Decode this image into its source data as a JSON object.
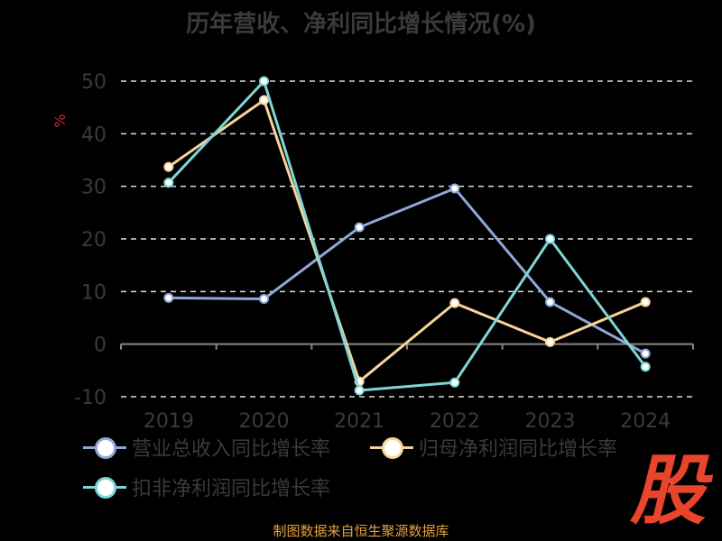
{
  "chart_data": {
    "type": "line",
    "title": "历年营收、净利同比增长情况(%)",
    "ylabel": "%",
    "categories": [
      "2019",
      "2020",
      "2021",
      "2022",
      "2023",
      "2024"
    ],
    "ylim": [
      -10,
      50
    ],
    "yticks": [
      50,
      40,
      30,
      20,
      10,
      0,
      -10
    ],
    "grid": true,
    "legend_position": "bottom",
    "series": [
      {
        "name": "营业总收入同比增长率",
        "color": "#8fa8d8",
        "values": [
          8.8,
          8.6,
          22.2,
          29.6,
          8.0,
          -1.8
        ]
      },
      {
        "name": "归母净利润同比增长率",
        "color": "#f6d49a",
        "values": [
          33.7,
          46.4,
          -7.1,
          7.8,
          0.4,
          8.0
        ]
      },
      {
        "name": "扣非净利润同比增长率",
        "color": "#7fd6d6",
        "values": [
          30.7,
          50.0,
          -8.8,
          -7.3,
          20.0,
          -4.3
        ]
      }
    ]
  },
  "source": "制图数据来自恒生聚源数据库",
  "logo_text": "股",
  "colors": {
    "background": "#000000",
    "grid": "#dddddd",
    "axis": "#888888",
    "tick_text": "#3a3a3a",
    "ylabel": "#cc2222"
  }
}
